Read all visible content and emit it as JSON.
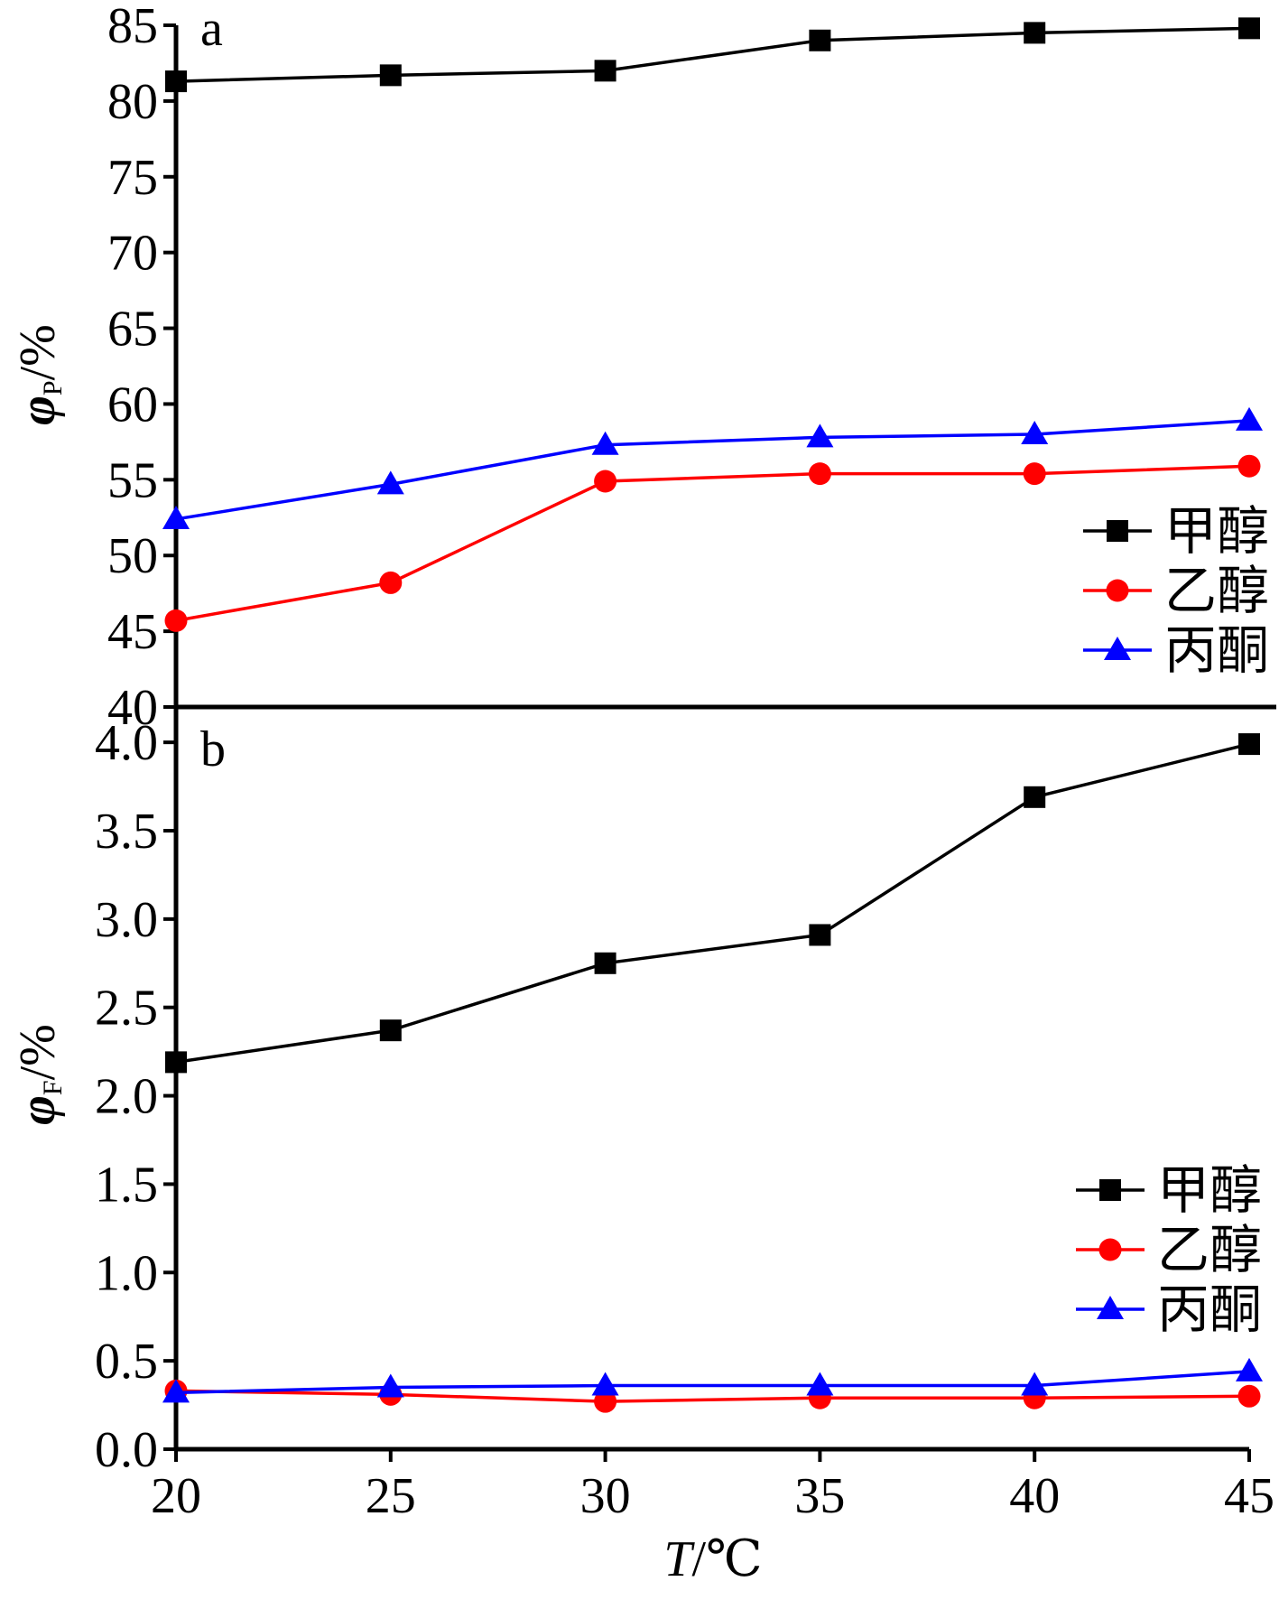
{
  "figure": {
    "x_axis_label": {
      "italic": "T",
      "rest": "/℃"
    },
    "x_ticks": [
      "20",
      "25",
      "30",
      "35",
      "40",
      "45"
    ]
  },
  "chart_data": [
    {
      "type": "line",
      "panel_label": "a",
      "ylabel": {
        "symbol": "φ",
        "subscript": "P",
        "unit": "/%"
      },
      "x": [
        20,
        25,
        30,
        35,
        40,
        45
      ],
      "xlim": [
        20,
        45
      ],
      "ylim": [
        40,
        85
      ],
      "y_ticks": [
        "40",
        "45",
        "50",
        "55",
        "60",
        "65",
        "70",
        "75",
        "80",
        "85"
      ],
      "legend_position": "right",
      "series": [
        {
          "name": "甲醇",
          "color": "#000000",
          "marker": "square",
          "values": [
            81.3,
            81.7,
            82.0,
            84.0,
            84.5,
            84.8
          ]
        },
        {
          "name": "乙醇",
          "color": "#ff0000",
          "marker": "circle",
          "values": [
            45.7,
            48.2,
            54.9,
            55.4,
            55.4,
            55.9
          ]
        },
        {
          "name": "丙酮",
          "color": "#0000ff",
          "marker": "triangle",
          "values": [
            52.4,
            54.7,
            57.3,
            57.8,
            58.0,
            58.9
          ]
        }
      ]
    },
    {
      "type": "line",
      "panel_label": "b",
      "ylabel": {
        "symbol": "φ",
        "subscript": "F",
        "unit": "/%"
      },
      "x": [
        20,
        25,
        30,
        35,
        40,
        45
      ],
      "xlim": [
        20,
        45
      ],
      "ylim": [
        0.0,
        4.2
      ],
      "y_ticks": [
        "0.0",
        "0.5",
        "1.0",
        "1.5",
        "2.0",
        "2.5",
        "3.0",
        "3.5",
        "4.0"
      ],
      "legend_position": "lower-right",
      "series": [
        {
          "name": "甲醇",
          "color": "#000000",
          "marker": "square",
          "values": [
            2.19,
            2.37,
            2.75,
            2.91,
            3.69,
            3.99
          ]
        },
        {
          "name": "乙醇",
          "color": "#ff0000",
          "marker": "circle",
          "values": [
            0.33,
            0.31,
            0.27,
            0.29,
            0.29,
            0.3
          ]
        },
        {
          "name": "丙酮",
          "color": "#0000ff",
          "marker": "triangle",
          "values": [
            0.32,
            0.35,
            0.36,
            0.36,
            0.36,
            0.44
          ]
        }
      ]
    }
  ]
}
